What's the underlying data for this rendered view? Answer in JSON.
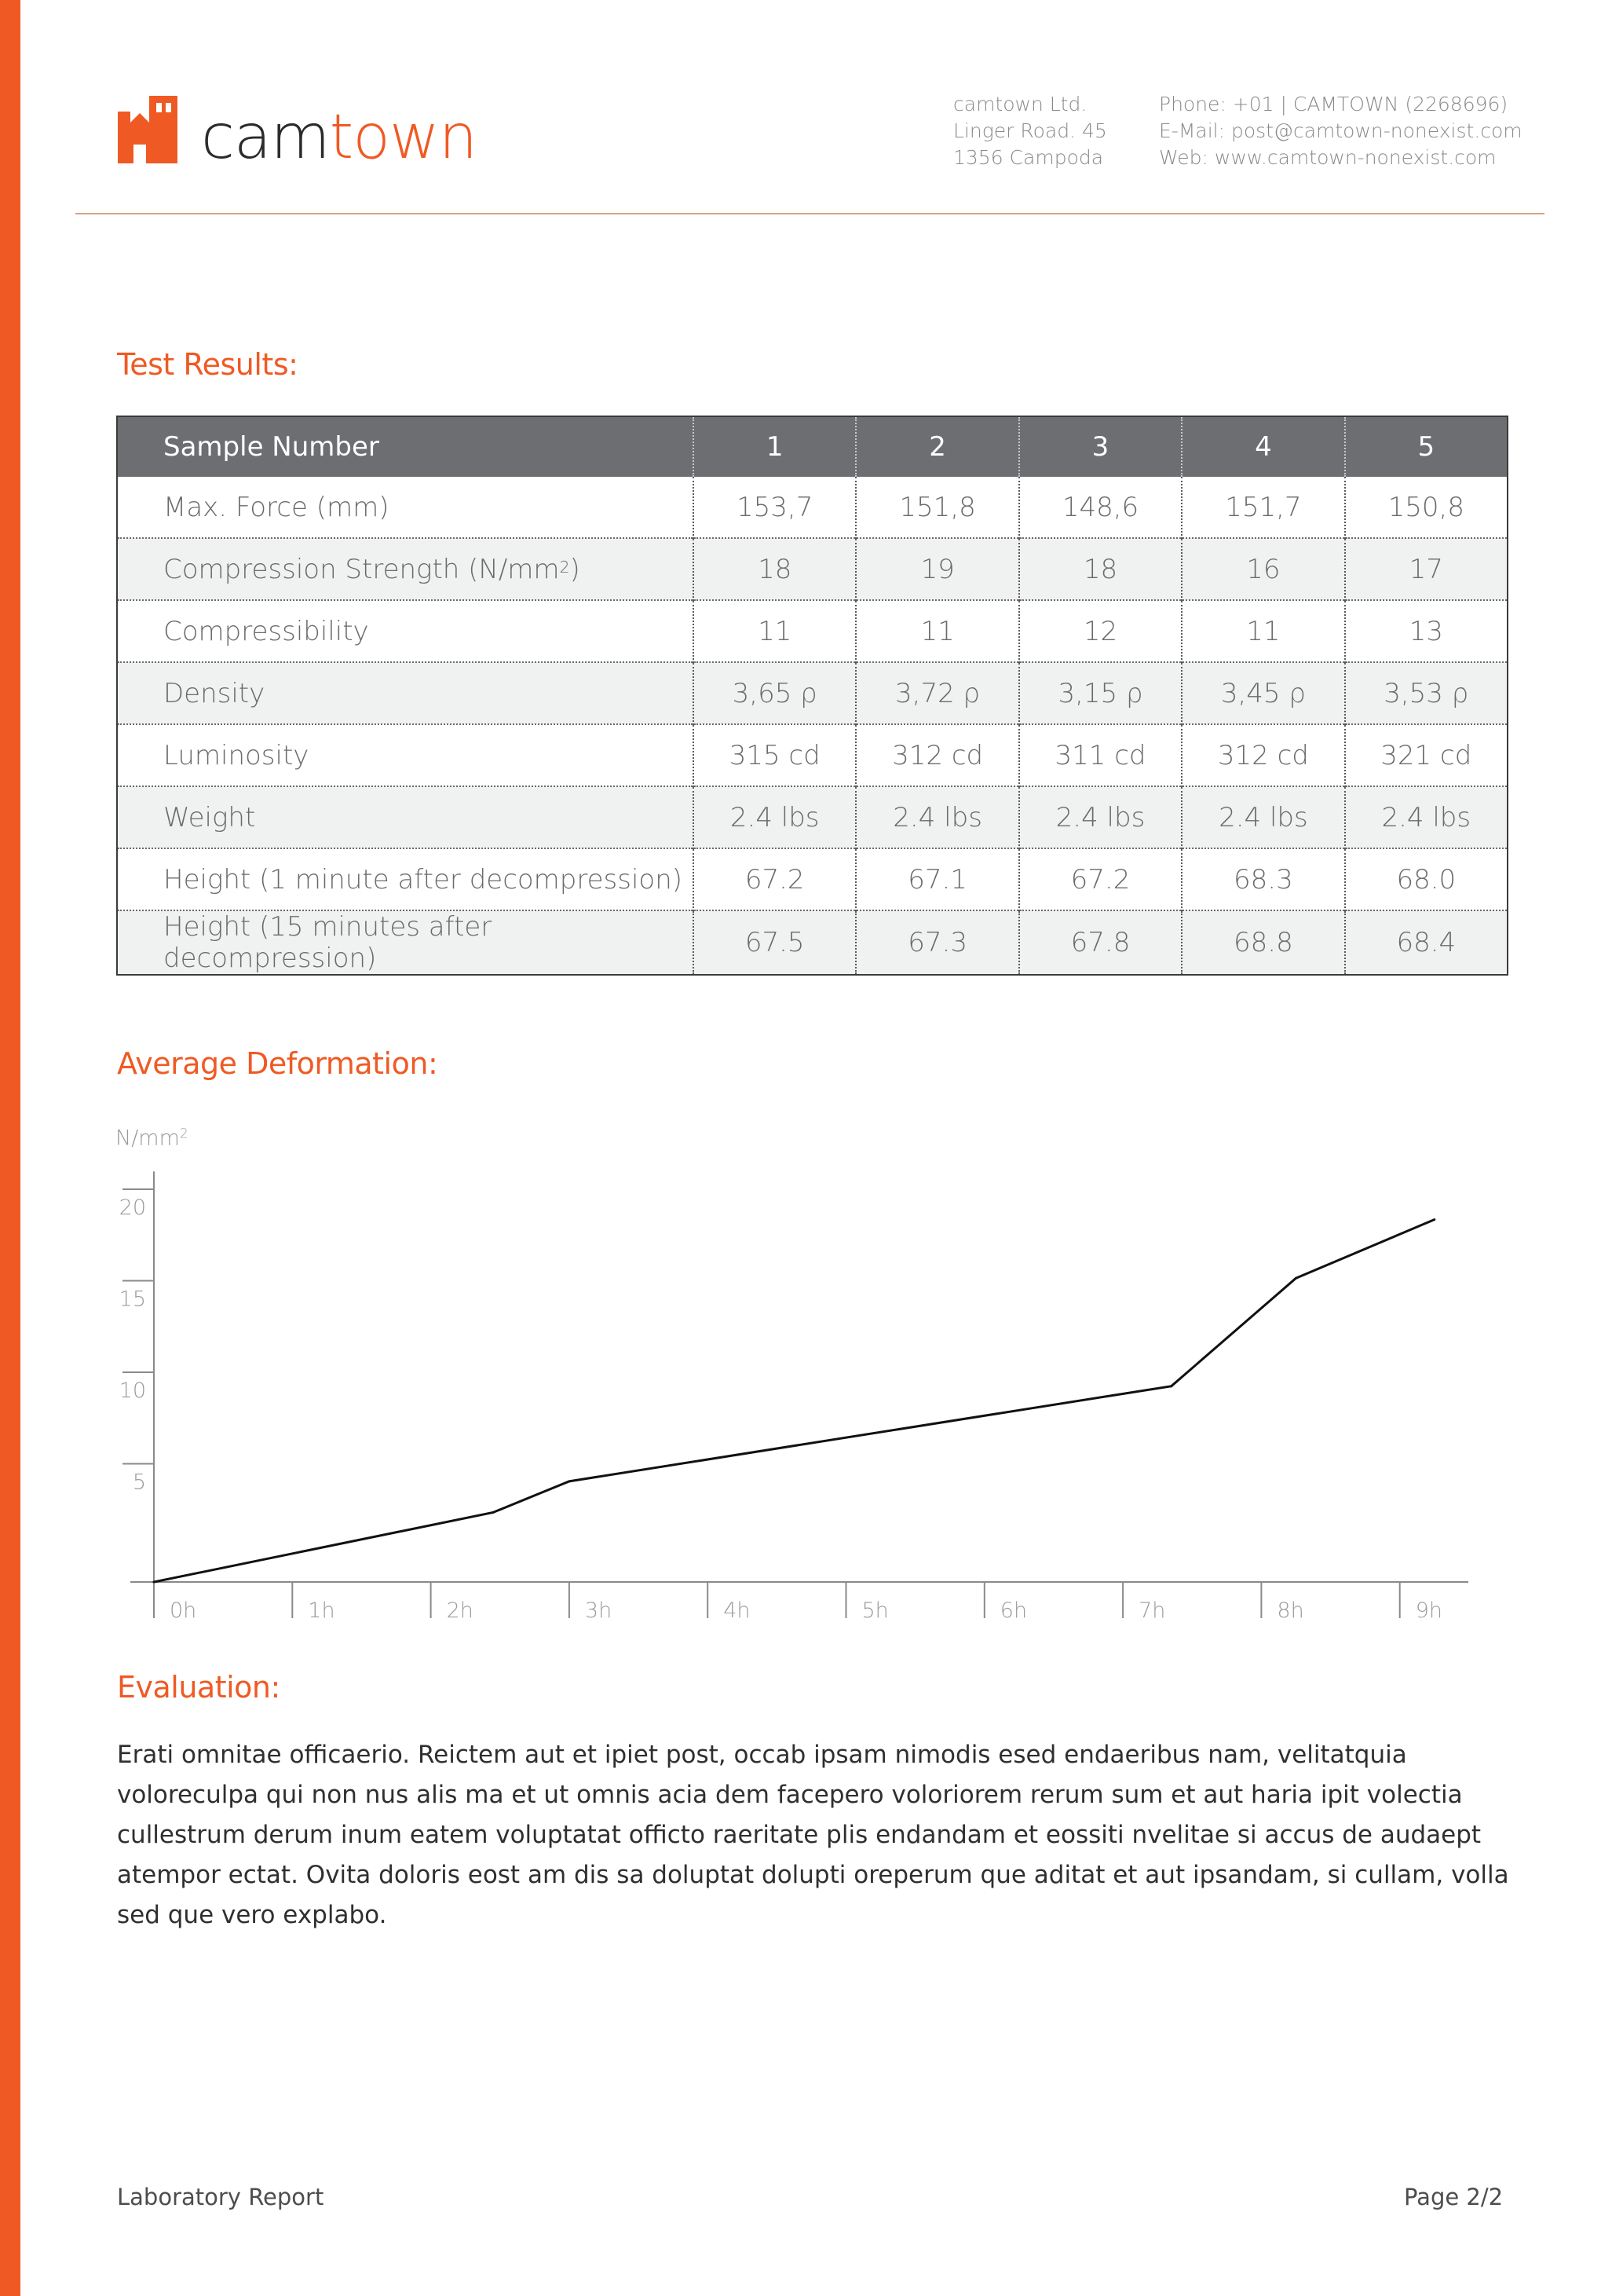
{
  "brand": {
    "name_part1": "cam",
    "name_part2": "town",
    "accent_color": "#ef5a24"
  },
  "contact": {
    "address": [
      "camtown Ltd.",
      "Linger Road. 45",
      "1356 Campoda"
    ],
    "lines": [
      "Phone: +01 | CAMTOWN (2268696)",
      "E-Mail: post@camtown-nonexist.com",
      "Web: www.camtown-nonexist.com"
    ]
  },
  "sections": {
    "test_results": "Test Results:",
    "average_deformation": "Average Deformation:",
    "evaluation": "Evaluation:"
  },
  "table": {
    "header_label": "Sample Number",
    "samples": [
      "1",
      "2",
      "3",
      "4",
      "5"
    ],
    "rows": [
      {
        "label": "Max. Force (mm)",
        "values": [
          "153,7",
          "151,8",
          "148,6",
          "151,7",
          "150,8"
        ]
      },
      {
        "label_main": "Compression Strength (N/mm",
        "label_sup": "2",
        "label_end": ")",
        "values": [
          "18",
          "19",
          "18",
          "16",
          "17"
        ]
      },
      {
        "label": "Compressibility",
        "values": [
          "11",
          "11",
          "12",
          "11",
          "13"
        ]
      },
      {
        "label": "Density",
        "values": [
          "3,65 ρ",
          "3,72 ρ",
          "3,15 ρ",
          "3,45 ρ",
          "3,53 ρ"
        ]
      },
      {
        "label": "Luminosity",
        "values": [
          "315 cd",
          "312 cd",
          "311 cd",
          "312 cd",
          "321 cd"
        ]
      },
      {
        "label": "Weight",
        "values": [
          "2.4 lbs",
          "2.4 lbs",
          "2.4 lbs",
          "2.4 lbs",
          "2.4 lbs"
        ]
      },
      {
        "label": "Height (1 minute after decompression)",
        "values": [
          "67.2",
          "67.1",
          "67.2",
          "68.3",
          "68.0"
        ]
      },
      {
        "label": "Height (15 minutes after decompression)",
        "values": [
          "67.5",
          "67.3",
          "67.8",
          "68.8",
          "68.4"
        ]
      }
    ]
  },
  "chart_data": {
    "type": "line",
    "ylabel": "N/mm",
    "ylabel_sup": "2",
    "xlabel": "",
    "x_ticks": [
      "0h",
      "1h",
      "2h",
      "3h",
      "4h",
      "5h",
      "6h",
      "7h",
      "8h",
      "9h"
    ],
    "y_ticks": [
      5,
      10,
      15,
      20
    ],
    "ylim": [
      0,
      22
    ],
    "xlim": [
      0,
      9.5
    ],
    "grid": false,
    "series": [
      {
        "x": [
          0,
          2.45,
          3.0,
          7.35,
          8.25,
          9.25
        ],
        "y": [
          0,
          3.8,
          5.5,
          10.7,
          16.6,
          19.8
        ]
      }
    ]
  },
  "evaluation_text": "Erati omnitae officaerio. Reictem aut et ipiet post, occab ipsam nimodis esed endaeribus nam, velitatquia voloreculpa qui non nus alis ma et ut omnis acia dem facepero voloriorem rerum sum et aut haria ipit volectia cullestrum derum inum eatem voluptatat officto raeritate plis endandam et eossiti nvelitae si accus de audaept atempor ectat. Ovita doloris eost am dis sa doluptat dolupti oreperum que aditat et aut ipsandam, si cullam, volla sed que vero explabo.",
  "footer": {
    "left": "Laboratory Report",
    "right": "Page 2/2"
  }
}
